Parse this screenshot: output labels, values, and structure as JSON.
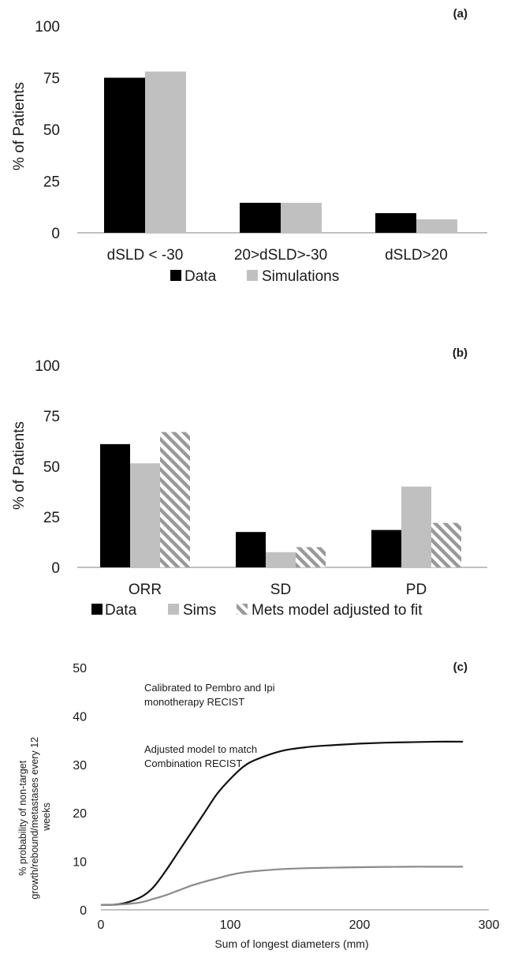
{
  "chart_data": [
    {
      "panel_label": "(a)",
      "type": "bar",
      "categories": [
        "dSLD < -30",
        "20>dSLD>-30",
        "dSLD>20"
      ],
      "series": [
        {
          "name": "Data",
          "values": [
            75,
            14.5,
            9.5
          ],
          "color": "#000000"
        },
        {
          "name": "Simulations",
          "values": [
            78,
            14.5,
            6.5
          ],
          "color": "#c0c0c0"
        }
      ],
      "ylabel": "% of Patients",
      "ylim": [
        0,
        100
      ],
      "yticks": [
        0,
        25,
        50,
        75,
        100
      ],
      "grid": false,
      "legend": "bottom"
    },
    {
      "panel_label": "(b)",
      "type": "bar",
      "categories": [
        "ORR",
        "SD",
        "PD"
      ],
      "series": [
        {
          "name": "Data",
          "values": [
            61,
            17.5,
            18.5
          ],
          "color": "#000000"
        },
        {
          "name": "Sims",
          "values": [
            51.5,
            7.5,
            40
          ],
          "color": "#c0c0c0"
        },
        {
          "name": "Mets model adjusted to fit",
          "values": [
            67,
            10,
            22
          ],
          "color": "#999999",
          "pattern": "diagonal-hatch"
        }
      ],
      "ylabel": "% of Patients",
      "ylim": [
        0,
        100
      ],
      "yticks": [
        0,
        25,
        50,
        75,
        100
      ],
      "grid": false,
      "legend": "bottom"
    },
    {
      "panel_label": "(c)",
      "type": "line",
      "xlabel": "Sum of longest diameters (mm)",
      "ylabel": "% probability of non-target growth/rebound/metastases every 12 weeks",
      "xlim": [
        0,
        300
      ],
      "ylim": [
        0,
        50
      ],
      "xticks": [
        0,
        100,
        200,
        300
      ],
      "yticks": [
        0,
        10,
        20,
        30,
        40,
        50
      ],
      "grid": false,
      "series": [
        {
          "name": "Calibrated to Pembro and Ipi monotherapy RECIST",
          "color": "#111111",
          "x": [
            0,
            15,
            30,
            40,
            50,
            60,
            70,
            80,
            90,
            100,
            110,
            120,
            140,
            160,
            180,
            200,
            220,
            240,
            260,
            280
          ],
          "y": [
            1,
            1.2,
            2.5,
            4.5,
            8,
            12,
            16,
            20,
            24,
            27,
            29.5,
            31,
            32.8,
            33.6,
            34,
            34.3,
            34.5,
            34.6,
            34.7,
            34.7
          ]
        },
        {
          "name": "Adjusted model to match Combination RECIST",
          "color": "#8a8a8a",
          "x": [
            0,
            15,
            30,
            40,
            50,
            60,
            70,
            80,
            90,
            100,
            110,
            120,
            140,
            160,
            180,
            200,
            220,
            240,
            260,
            280
          ],
          "y": [
            1,
            1.1,
            1.5,
            2.2,
            3,
            4,
            5,
            5.8,
            6.5,
            7.2,
            7.7,
            8,
            8.4,
            8.6,
            8.7,
            8.8,
            8.85,
            8.9,
            8.9,
            8.9
          ]
        }
      ]
    }
  ]
}
